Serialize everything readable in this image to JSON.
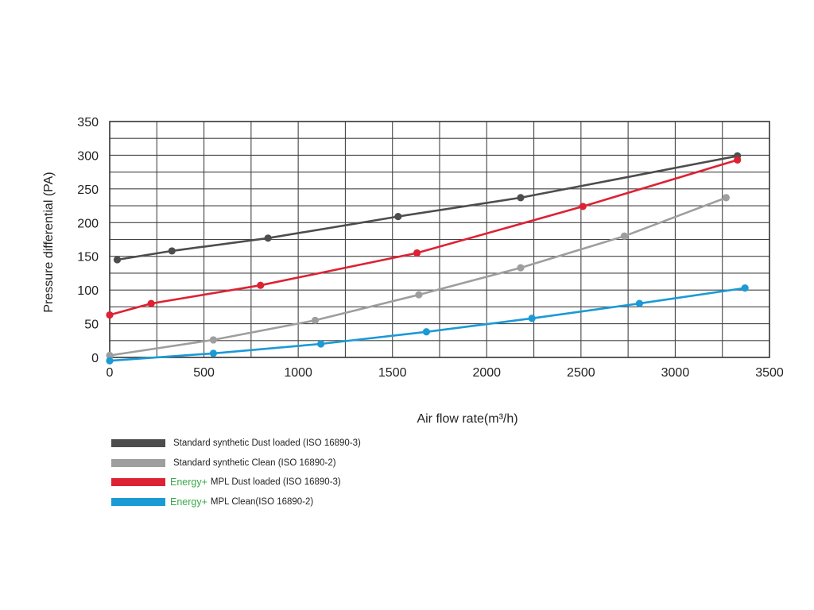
{
  "chart_data": {
    "type": "line",
    "xlabel": "Air flow rate(m³/h)",
    "ylabel": "Pressure differential (PA)",
    "xlim": [
      0,
      3500
    ],
    "ylim": [
      0,
      350
    ],
    "x_ticks": [
      "0",
      "500",
      "1000",
      "1500",
      "2000",
      "2500",
      "3000",
      "3500"
    ],
    "y_ticks": [
      "0",
      "50",
      "100",
      "150",
      "200",
      "250",
      "300",
      "350"
    ],
    "grid": true,
    "legend_position": "bottom-left",
    "series": [
      {
        "name": "Standard synthetic Dust loaded (ISO 16890-3)",
        "prefix": "",
        "label": "Standard synthetic Dust loaded (ISO 16890-3)",
        "color": "#4d4d4d",
        "points": [
          [
            40,
            145
          ],
          [
            330,
            158
          ],
          [
            840,
            177
          ],
          [
            1530,
            209
          ],
          [
            2180,
            237
          ],
          [
            3330,
            299
          ]
        ]
      },
      {
        "name": "Standard synthetic Clean (ISO 16890-2)",
        "prefix": "",
        "label": "Standard synthetic Clean (ISO 16890-2)",
        "color": "#9e9e9e",
        "points": [
          [
            0,
            3
          ],
          [
            550,
            26
          ],
          [
            1090,
            55
          ],
          [
            1640,
            93
          ],
          [
            2180,
            133
          ],
          [
            2730,
            180
          ],
          [
            3270,
            237
          ]
        ]
      },
      {
        "name": "Energy+ MPL Dust loaded (ISO 16890-3)",
        "prefix": "Energy+",
        "label": "MPL Dust loaded (ISO 16890-3)",
        "color": "#dd2233",
        "points": [
          [
            0,
            63
          ],
          [
            220,
            80
          ],
          [
            800,
            107
          ],
          [
            1630,
            155
          ],
          [
            2510,
            224
          ],
          [
            3330,
            293
          ]
        ]
      },
      {
        "name": "Energy+ MPL Clean(ISO 16890-2)",
        "prefix": "Energy+",
        "label": "MPL Clean(ISO 16890-2)",
        "color": "#1b9ad6",
        "points": [
          [
            0,
            -5
          ],
          [
            550,
            6
          ],
          [
            1120,
            20
          ],
          [
            1680,
            38
          ],
          [
            2240,
            58
          ],
          [
            2810,
            80
          ],
          [
            3370,
            103
          ]
        ]
      }
    ]
  }
}
